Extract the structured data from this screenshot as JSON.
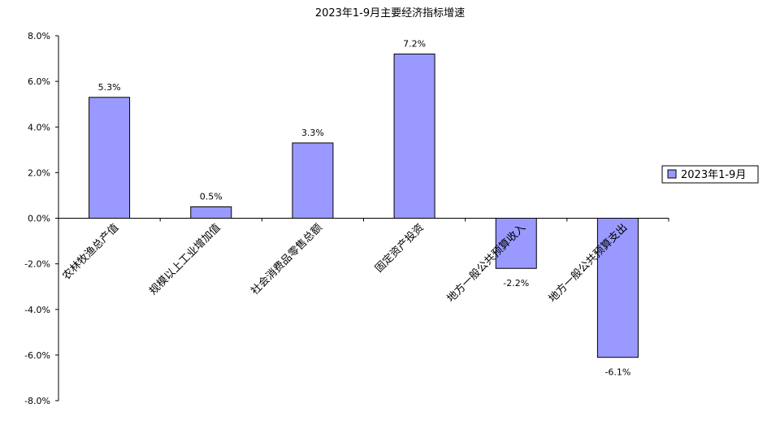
{
  "chart_data": {
    "type": "bar",
    "title": "2023年1-9月主要经济指标增速",
    "categories": [
      "农林牧渔总产值",
      "规模以上工业增加值",
      "社会消费品零售总额",
      "固定资产投资",
      "地方一般公共预算收入",
      "地方一般公共预算支出"
    ],
    "series": [
      {
        "name": "2023年1-9月",
        "values": [
          5.3,
          0.5,
          3.3,
          7.2,
          -2.2,
          -6.1
        ],
        "color": "#9999ff"
      }
    ],
    "data_labels": [
      "5.3%",
      "0.5%",
      "3.3%",
      "7.2%",
      "-2.2%",
      "-6.1%"
    ],
    "y_ticks": [
      "8.0%",
      "6.0%",
      "4.0%",
      "2.0%",
      "0.0%",
      "-2.0%",
      "-4.0%",
      "-6.0%",
      "-8.0%"
    ],
    "ylim": [
      -8,
      8
    ],
    "xlabel": "",
    "ylabel": "",
    "grid": false,
    "legend_position": "right"
  }
}
